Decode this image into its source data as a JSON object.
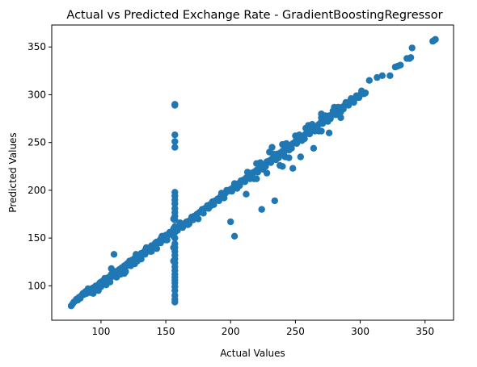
{
  "chart_data": {
    "type": "scatter",
    "title": "Actual vs Predicted Exchange Rate - GradientBoostingRegressor",
    "xlabel": "Actual Values",
    "ylabel": "Predicted Values",
    "xlim": [
      62,
      372
    ],
    "ylim": [
      64,
      373
    ],
    "xticks": [
      100,
      150,
      200,
      250,
      300,
      350
    ],
    "yticks": [
      100,
      150,
      200,
      250,
      300,
      350
    ],
    "grid": false,
    "legend": "none",
    "color": "#1f77b4",
    "series": [
      {
        "points": [
          [
            77,
            79
          ],
          [
            78,
            81
          ],
          [
            79,
            83
          ],
          [
            80,
            84
          ],
          [
            81,
            86
          ],
          [
            82,
            85
          ],
          [
            83,
            88
          ],
          [
            84,
            87
          ],
          [
            85,
            90
          ],
          [
            86,
            92
          ],
          [
            87,
            91
          ],
          [
            88,
            94
          ],
          [
            89,
            92
          ],
          [
            90,
            95
          ],
          [
            91,
            96
          ],
          [
            92,
            93
          ],
          [
            93,
            97
          ],
          [
            94,
            98
          ],
          [
            95,
            96
          ],
          [
            96,
            100
          ],
          [
            97,
            98
          ],
          [
            98,
            101
          ],
          [
            99,
            103
          ],
          [
            100,
            99
          ],
          [
            101,
            104
          ],
          [
            102,
            106
          ],
          [
            103,
            102
          ],
          [
            104,
            107
          ],
          [
            105,
            105
          ],
          [
            106,
            109
          ],
          [
            107,
            108
          ],
          [
            108,
            111
          ],
          [
            109,
            110
          ],
          [
            110,
            113
          ],
          [
            111,
            112
          ],
          [
            112,
            115
          ],
          [
            113,
            114
          ],
          [
            114,
            117
          ],
          [
            115,
            116
          ],
          [
            116,
            119
          ],
          [
            117,
            118
          ],
          [
            118,
            121
          ],
          [
            119,
            120
          ],
          [
            120,
            123
          ],
          [
            121,
            122
          ],
          [
            122,
            125
          ],
          [
            123,
            124
          ],
          [
            124,
            127
          ],
          [
            125,
            126
          ],
          [
            126,
            129
          ],
          [
            127,
            128
          ],
          [
            128,
            131
          ],
          [
            129,
            130
          ],
          [
            130,
            132
          ],
          [
            131,
            134
          ],
          [
            132,
            133
          ],
          [
            133,
            135
          ],
          [
            134,
            137
          ],
          [
            135,
            136
          ],
          [
            136,
            139
          ],
          [
            137,
            138
          ],
          [
            138,
            140
          ],
          [
            139,
            142
          ],
          [
            140,
            141
          ],
          [
            141,
            143
          ],
          [
            142,
            144
          ],
          [
            143,
            146
          ],
          [
            144,
            145
          ],
          [
            145,
            147
          ],
          [
            146,
            149
          ],
          [
            147,
            148
          ],
          [
            148,
            150
          ],
          [
            149,
            151
          ],
          [
            150,
            153
          ],
          [
            151,
            152
          ],
          [
            152,
            154
          ],
          [
            153,
            156
          ],
          [
            154,
            155
          ],
          [
            156,
            157
          ],
          [
            158,
            159
          ],
          [
            160,
            161
          ],
          [
            162,
            163
          ],
          [
            164,
            165
          ],
          [
            166,
            167
          ],
          [
            168,
            168
          ],
          [
            170,
            170
          ],
          [
            172,
            173
          ],
          [
            174,
            175
          ],
          [
            176,
            177
          ],
          [
            178,
            180
          ],
          [
            180,
            181
          ],
          [
            182,
            184
          ],
          [
            184,
            185
          ],
          [
            186,
            188
          ],
          [
            188,
            189
          ],
          [
            190,
            191
          ],
          [
            192,
            193
          ],
          [
            194,
            195
          ],
          [
            196,
            197
          ],
          [
            198,
            199
          ],
          [
            200,
            201
          ],
          [
            202,
            203
          ],
          [
            204,
            206
          ],
          [
            206,
            207
          ],
          [
            208,
            210
          ],
          [
            210,
            211
          ],
          [
            212,
            213
          ],
          [
            214,
            215
          ],
          [
            216,
            218
          ],
          [
            218,
            219
          ],
          [
            220,
            221
          ],
          [
            222,
            223
          ],
          [
            224,
            226
          ],
          [
            226,
            227
          ],
          [
            228,
            230
          ],
          [
            230,
            231
          ],
          [
            232,
            233
          ],
          [
            234,
            235
          ],
          [
            236,
            238
          ],
          [
            238,
            239
          ],
          [
            240,
            241
          ],
          [
            242,
            243
          ],
          [
            244,
            245
          ],
          [
            246,
            247
          ],
          [
            248,
            249
          ],
          [
            250,
            251
          ],
          [
            252,
            253
          ],
          [
            254,
            255
          ],
          [
            256,
            257
          ],
          [
            258,
            259
          ],
          [
            260,
            261
          ],
          [
            262,
            263
          ],
          [
            264,
            265
          ],
          [
            266,
            267
          ],
          [
            268,
            269
          ],
          [
            270,
            272
          ],
          [
            272,
            273
          ],
          [
            274,
            275
          ],
          [
            276,
            278
          ],
          [
            278,
            279
          ],
          [
            280,
            281
          ],
          [
            282,
            283
          ],
          [
            284,
            285
          ],
          [
            286,
            287
          ],
          [
            288,
            289
          ],
          [
            290,
            291
          ],
          [
            292,
            293
          ],
          [
            294,
            294
          ],
          [
            296,
            296
          ],
          [
            298,
            298
          ],
          [
            300,
            300
          ],
          [
            302,
            302
          ],
          [
            304,
            302
          ],
          [
            100,
            104
          ],
          [
            104,
            101
          ],
          [
            108,
            112
          ],
          [
            112,
            109
          ],
          [
            118,
            117
          ],
          [
            122,
            126
          ],
          [
            126,
            123
          ],
          [
            130,
            129
          ],
          [
            134,
            133
          ],
          [
            138,
            136
          ],
          [
            142,
            145
          ],
          [
            146,
            145
          ],
          [
            150,
            148
          ],
          [
            110,
            133
          ],
          [
            108,
            118
          ],
          [
            118,
            113
          ],
          [
            128,
            126
          ],
          [
            161,
            166
          ],
          [
            168,
            165
          ],
          [
            170,
            172
          ],
          [
            175,
            170
          ],
          [
            185,
            184
          ],
          [
            195,
            192
          ],
          [
            205,
            202
          ],
          [
            215,
            212
          ],
          [
            225,
            222
          ],
          [
            235,
            232
          ],
          [
            245,
            242
          ],
          [
            255,
            252
          ],
          [
            265,
            262
          ],
          [
            275,
            272
          ],
          [
            285,
            282
          ],
          [
            220,
            228
          ],
          [
            230,
            240
          ],
          [
            240,
            248
          ],
          [
            250,
            257
          ],
          [
            260,
            268
          ],
          [
            270,
            276
          ],
          [
            245,
            234
          ],
          [
            238,
            226
          ],
          [
            228,
            218
          ],
          [
            218,
            212
          ],
          [
            258,
            265
          ],
          [
            268,
            262
          ],
          [
            280,
            287
          ],
          [
            232,
            245
          ],
          [
            242,
            235
          ],
          [
            157,
            289
          ],
          [
            157,
            290
          ],
          [
            157,
            258
          ],
          [
            157,
            251
          ],
          [
            157,
            245
          ],
          [
            157,
            198
          ],
          [
            157,
            194
          ],
          [
            157,
            190
          ],
          [
            157,
            186
          ],
          [
            157,
            181
          ],
          [
            157,
            177
          ],
          [
            157,
            173
          ],
          [
            157,
            169
          ],
          [
            157,
            162
          ],
          [
            157,
            156
          ],
          [
            157,
            150
          ],
          [
            157,
            144
          ],
          [
            157,
            140
          ],
          [
            157,
            136
          ],
          [
            157,
            132
          ],
          [
            157,
            128
          ],
          [
            157,
            124
          ],
          [
            157,
            120
          ],
          [
            157,
            116
          ],
          [
            157,
            112
          ],
          [
            157,
            109
          ],
          [
            157,
            106
          ],
          [
            157,
            103
          ],
          [
            157,
            99
          ],
          [
            157,
            95
          ],
          [
            157,
            90
          ],
          [
            157,
            86
          ],
          [
            157,
            83
          ],
          [
            156,
            170
          ],
          [
            156,
            160
          ],
          [
            156,
            152
          ],
          [
            156,
            140
          ],
          [
            156,
            126
          ],
          [
            200,
            167
          ],
          [
            203,
            152
          ],
          [
            224,
            180
          ],
          [
            234,
            189
          ],
          [
            212,
            196
          ],
          [
            220,
            212
          ],
          [
            240,
            225
          ],
          [
            248,
            223
          ],
          [
            254,
            235
          ],
          [
            264,
            244
          ],
          [
            270,
            262
          ],
          [
            276,
            260
          ],
          [
            285,
            276
          ],
          [
            270,
            280
          ],
          [
            307,
            315
          ],
          [
            313,
            318
          ],
          [
            317,
            320
          ],
          [
            323,
            320
          ],
          [
            327,
            329
          ],
          [
            329,
            330
          ],
          [
            331,
            331
          ],
          [
            336,
            338
          ],
          [
            338,
            338
          ],
          [
            339,
            339
          ],
          [
            340,
            349
          ],
          [
            356,
            356
          ],
          [
            358,
            358
          ],
          [
            357,
            357
          ],
          [
            84,
            88
          ],
          [
            90,
            97
          ],
          [
            94,
            92
          ],
          [
            98,
            95
          ],
          [
            103,
            108
          ],
          [
            107,
            104
          ],
          [
            111,
            115
          ],
          [
            115,
            112
          ],
          [
            119,
            115
          ],
          [
            123,
            121
          ],
          [
            127,
            133
          ],
          [
            131,
            128
          ],
          [
            135,
            140
          ],
          [
            139,
            136
          ],
          [
            143,
            139
          ],
          [
            147,
            152
          ],
          [
            151,
            148
          ],
          [
            155,
            157
          ],
          [
            159,
            158
          ],
          [
            163,
            161
          ],
          [
            167,
            164
          ],
          [
            171,
            169
          ],
          [
            179,
            176
          ],
          [
            183,
            181
          ],
          [
            187,
            185
          ],
          [
            191,
            189
          ],
          [
            197,
            200
          ],
          [
            201,
            199
          ],
          [
            207,
            205
          ],
          [
            211,
            209
          ],
          [
            217,
            214
          ],
          [
            221,
            219
          ],
          [
            227,
            225
          ],
          [
            231,
            229
          ],
          [
            237,
            234
          ],
          [
            241,
            238
          ],
          [
            247,
            244
          ],
          [
            251,
            249
          ],
          [
            257,
            254
          ],
          [
            261,
            259
          ],
          [
            267,
            264
          ],
          [
            271,
            270
          ],
          [
            277,
            275
          ],
          [
            281,
            279
          ],
          [
            287,
            285
          ],
          [
            291,
            289
          ],
          [
            295,
            292
          ],
          [
            299,
            297
          ],
          [
            303,
            301
          ],
          [
            301,
            304
          ],
          [
            297,
            299
          ],
          [
            293,
            296
          ],
          [
            289,
            292
          ],
          [
            283,
            287
          ],
          [
            279,
            283
          ],
          [
            273,
            278
          ],
          [
            263,
            269
          ],
          [
            253,
            258
          ],
          [
            243,
            249
          ],
          [
            233,
            238
          ],
          [
            223,
            229
          ],
          [
            213,
            219
          ],
          [
            203,
            207
          ],
          [
            193,
            197
          ]
        ]
      }
    ]
  }
}
